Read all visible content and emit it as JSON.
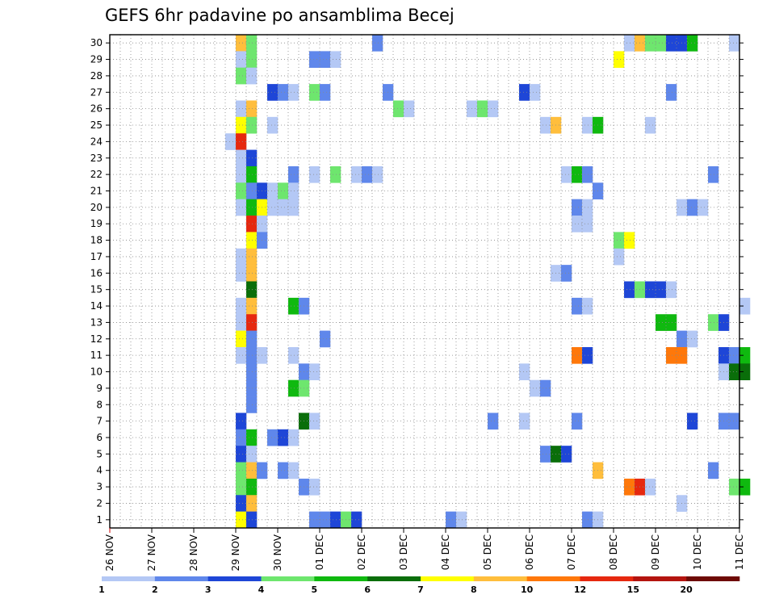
{
  "chart_data": {
    "type": "heatmap",
    "title": "GEFS 6hr padavine po ansamblima Becej",
    "y_categories": [
      "1",
      "2",
      "3",
      "4",
      "5",
      "6",
      "7",
      "8",
      "9",
      "10",
      "11",
      "12",
      "13",
      "14",
      "15",
      "16",
      "17",
      "18",
      "19",
      "20",
      "21",
      "22",
      "23",
      "24",
      "25",
      "26",
      "27",
      "28",
      "29",
      "30"
    ],
    "x_categories": [
      "26 NOV",
      "27 NOV",
      "28 NOV",
      "29 NOV",
      "30 NOV",
      "01 DEC",
      "02 DEC",
      "03 DEC",
      "04 DEC",
      "05 DEC",
      "06 DEC",
      "07 DEC",
      "08 DEC",
      "09 DEC",
      "10 DEC",
      "11 DEC"
    ],
    "x_steps_per_day": 4,
    "grid": true,
    "colorbar": {
      "position": "bottom",
      "colors": [
        "#b4c8f5",
        "#5f87eb",
        "#1e46d7",
        "#6ee66e",
        "#0fb90f",
        "#0a6e0a",
        "#ffff00",
        "#ffbe3c",
        "#ff780a",
        "#e6280f",
        "#b4140f",
        "#6e0a05"
      ],
      "labels": [
        "1",
        "2",
        "3",
        "4",
        "5",
        "6",
        "7",
        "8",
        "10",
        "12",
        "15",
        "20"
      ]
    },
    "cells": [
      {
        "member": 30,
        "step": 12,
        "v": 8
      },
      {
        "member": 30,
        "step": 13,
        "v": 4
      },
      {
        "member": 30,
        "step": 25,
        "v": 2
      },
      {
        "member": 30,
        "step": 49,
        "v": 1
      },
      {
        "member": 30,
        "step": 50,
        "v": 8
      },
      {
        "member": 30,
        "step": 51,
        "v": 4
      },
      {
        "member": 30,
        "step": 52,
        "v": 4
      },
      {
        "member": 30,
        "step": 53,
        "v": 3
      },
      {
        "member": 30,
        "step": 54,
        "v": 3
      },
      {
        "member": 30,
        "step": 55,
        "v": 5
      },
      {
        "member": 30,
        "step": 59,
        "v": 1
      },
      {
        "member": 29,
        "step": 12,
        "v": 1
      },
      {
        "member": 29,
        "step": 13,
        "v": 4
      },
      {
        "member": 29,
        "step": 19,
        "v": 2
      },
      {
        "member": 29,
        "step": 20,
        "v": 2
      },
      {
        "member": 29,
        "step": 21,
        "v": 1
      },
      {
        "member": 29,
        "step": 48,
        "v": 7
      },
      {
        "member": 28,
        "step": 12,
        "v": 4
      },
      {
        "member": 28,
        "step": 13,
        "v": 1
      },
      {
        "member": 27,
        "step": 15,
        "v": 3
      },
      {
        "member": 27,
        "step": 16,
        "v": 2
      },
      {
        "member": 27,
        "step": 17,
        "v": 1
      },
      {
        "member": 27,
        "step": 19,
        "v": 4
      },
      {
        "member": 27,
        "step": 20,
        "v": 2
      },
      {
        "member": 27,
        "step": 26,
        "v": 2
      },
      {
        "member": 27,
        "step": 39,
        "v": 3
      },
      {
        "member": 27,
        "step": 40,
        "v": 1
      },
      {
        "member": 27,
        "step": 53,
        "v": 2
      },
      {
        "member": 26,
        "step": 12,
        "v": 1
      },
      {
        "member": 26,
        "step": 13,
        "v": 8
      },
      {
        "member": 26,
        "step": 27,
        "v": 4
      },
      {
        "member": 26,
        "step": 28,
        "v": 1
      },
      {
        "member": 26,
        "step": 34,
        "v": 1
      },
      {
        "member": 26,
        "step": 35,
        "v": 4
      },
      {
        "member": 26,
        "step": 36,
        "v": 1
      },
      {
        "member": 25,
        "step": 12,
        "v": 7
      },
      {
        "member": 25,
        "step": 13,
        "v": 4
      },
      {
        "member": 25,
        "step": 15,
        "v": 1
      },
      {
        "member": 25,
        "step": 41,
        "v": 1
      },
      {
        "member": 25,
        "step": 42,
        "v": 8
      },
      {
        "member": 25,
        "step": 45,
        "v": 1
      },
      {
        "member": 25,
        "step": 46,
        "v": 5
      },
      {
        "member": 25,
        "step": 51,
        "v": 1
      },
      {
        "member": 24,
        "step": 11,
        "v": 1
      },
      {
        "member": 24,
        "step": 12,
        "v": 10
      },
      {
        "member": 23,
        "step": 12,
        "v": 1
      },
      {
        "member": 23,
        "step": 13,
        "v": 3
      },
      {
        "member": 22,
        "step": 12,
        "v": 1
      },
      {
        "member": 22,
        "step": 13,
        "v": 5
      },
      {
        "member": 22,
        "step": 17,
        "v": 2
      },
      {
        "member": 22,
        "step": 19,
        "v": 1
      },
      {
        "member": 22,
        "step": 21,
        "v": 4
      },
      {
        "member": 22,
        "step": 23,
        "v": 1
      },
      {
        "member": 22,
        "step": 24,
        "v": 2
      },
      {
        "member": 22,
        "step": 25,
        "v": 1
      },
      {
        "member": 22,
        "step": 43,
        "v": 1
      },
      {
        "member": 22,
        "step": 44,
        "v": 5
      },
      {
        "member": 22,
        "step": 45,
        "v": 2
      },
      {
        "member": 22,
        "step": 57,
        "v": 2
      },
      {
        "member": 21,
        "step": 12,
        "v": 4
      },
      {
        "member": 21,
        "step": 13,
        "v": 2
      },
      {
        "member": 21,
        "step": 14,
        "v": 3
      },
      {
        "member": 21,
        "step": 15,
        "v": 1
      },
      {
        "member": 21,
        "step": 16,
        "v": 4
      },
      {
        "member": 21,
        "step": 17,
        "v": 1
      },
      {
        "member": 21,
        "step": 46,
        "v": 2
      },
      {
        "member": 20,
        "step": 12,
        "v": 1
      },
      {
        "member": 20,
        "step": 13,
        "v": 5
      },
      {
        "member": 20,
        "step": 14,
        "v": 7
      },
      {
        "member": 20,
        "step": 15,
        "v": 1
      },
      {
        "member": 20,
        "step": 16,
        "v": 1
      },
      {
        "member": 20,
        "step": 17,
        "v": 1
      },
      {
        "member": 20,
        "step": 44,
        "v": 2
      },
      {
        "member": 20,
        "step": 45,
        "v": 1
      },
      {
        "member": 20,
        "step": 54,
        "v": 1
      },
      {
        "member": 20,
        "step": 55,
        "v": 2
      },
      {
        "member": 20,
        "step": 56,
        "v": 1
      },
      {
        "member": 19,
        "step": 13,
        "v": 10
      },
      {
        "member": 19,
        "step": 14,
        "v": 1
      },
      {
        "member": 19,
        "step": 44,
        "v": 1
      },
      {
        "member": 19,
        "step": 45,
        "v": 1
      },
      {
        "member": 18,
        "step": 13,
        "v": 7
      },
      {
        "member": 18,
        "step": 14,
        "v": 2
      },
      {
        "member": 18,
        "step": 48,
        "v": 4
      },
      {
        "member": 18,
        "step": 49,
        "v": 7
      },
      {
        "member": 17,
        "step": 12,
        "v": 1
      },
      {
        "member": 17,
        "step": 13,
        "v": 8
      },
      {
        "member": 17,
        "step": 48,
        "v": 1
      },
      {
        "member": 16,
        "step": 12,
        "v": 1
      },
      {
        "member": 16,
        "step": 13,
        "v": 8
      },
      {
        "member": 16,
        "step": 42,
        "v": 1
      },
      {
        "member": 16,
        "step": 43,
        "v": 2
      },
      {
        "member": 15,
        "step": 13,
        "v": 6
      },
      {
        "member": 15,
        "step": 49,
        "v": 3
      },
      {
        "member": 15,
        "step": 50,
        "v": 4
      },
      {
        "member": 15,
        "step": 51,
        "v": 3
      },
      {
        "member": 15,
        "step": 52,
        "v": 3
      },
      {
        "member": 15,
        "step": 53,
        "v": 1
      },
      {
        "member": 14,
        "step": 12,
        "v": 1
      },
      {
        "member": 14,
        "step": 13,
        "v": 8
      },
      {
        "member": 14,
        "step": 17,
        "v": 5
      },
      {
        "member": 14,
        "step": 18,
        "v": 2
      },
      {
        "member": 14,
        "step": 44,
        "v": 2
      },
      {
        "member": 14,
        "step": 45,
        "v": 1
      },
      {
        "member": 14,
        "step": 60,
        "v": 1
      },
      {
        "member": 13,
        "step": 12,
        "v": 1
      },
      {
        "member": 13,
        "step": 13,
        "v": 10
      },
      {
        "member": 13,
        "step": 52,
        "v": 5
      },
      {
        "member": 13,
        "step": 53,
        "v": 5
      },
      {
        "member": 13,
        "step": 57,
        "v": 4
      },
      {
        "member": 13,
        "step": 58,
        "v": 3
      },
      {
        "member": 12,
        "step": 12,
        "v": 7
      },
      {
        "member": 12,
        "step": 13,
        "v": 2
      },
      {
        "member": 12,
        "step": 20,
        "v": 2
      },
      {
        "member": 12,
        "step": 54,
        "v": 2
      },
      {
        "member": 12,
        "step": 55,
        "v": 1
      },
      {
        "member": 11,
        "step": 12,
        "v": 1
      },
      {
        "member": 11,
        "step": 13,
        "v": 2
      },
      {
        "member": 11,
        "step": 14,
        "v": 1
      },
      {
        "member": 11,
        "step": 17,
        "v": 1
      },
      {
        "member": 11,
        "step": 44,
        "v": 9
      },
      {
        "member": 11,
        "step": 45,
        "v": 3
      },
      {
        "member": 11,
        "step": 53,
        "v": 9
      },
      {
        "member": 11,
        "step": 54,
        "v": 9
      },
      {
        "member": 11,
        "step": 58,
        "v": 3
      },
      {
        "member": 11,
        "step": 59,
        "v": 2
      },
      {
        "member": 11,
        "step": 60,
        "v": 5
      },
      {
        "member": 10,
        "step": 13,
        "v": 2
      },
      {
        "member": 10,
        "step": 18,
        "v": 2
      },
      {
        "member": 10,
        "step": 19,
        "v": 1
      },
      {
        "member": 10,
        "step": 39,
        "v": 1
      },
      {
        "member": 10,
        "step": 58,
        "v": 1
      },
      {
        "member": 10,
        "step": 59,
        "v": 6
      },
      {
        "member": 10,
        "step": 60,
        "v": 6
      },
      {
        "member": 9,
        "step": 13,
        "v": 2
      },
      {
        "member": 9,
        "step": 17,
        "v": 5
      },
      {
        "member": 9,
        "step": 18,
        "v": 4
      },
      {
        "member": 9,
        "step": 40,
        "v": 1
      },
      {
        "member": 9,
        "step": 41,
        "v": 2
      },
      {
        "member": 8,
        "step": 13,
        "v": 2
      },
      {
        "member": 7,
        "step": 12,
        "v": 3
      },
      {
        "member": 7,
        "step": 18,
        "v": 6
      },
      {
        "member": 7,
        "step": 19,
        "v": 1
      },
      {
        "member": 7,
        "step": 36,
        "v": 2
      },
      {
        "member": 7,
        "step": 39,
        "v": 1
      },
      {
        "member": 7,
        "step": 44,
        "v": 2
      },
      {
        "member": 7,
        "step": 55,
        "v": 3
      },
      {
        "member": 7,
        "step": 58,
        "v": 2
      },
      {
        "member": 7,
        "step": 59,
        "v": 2
      },
      {
        "member": 6,
        "step": 12,
        "v": 2
      },
      {
        "member": 6,
        "step": 13,
        "v": 5
      },
      {
        "member": 6,
        "step": 15,
        "v": 2
      },
      {
        "member": 6,
        "step": 16,
        "v": 3
      },
      {
        "member": 6,
        "step": 17,
        "v": 1
      },
      {
        "member": 5,
        "step": 12,
        "v": 3
      },
      {
        "member": 5,
        "step": 13,
        "v": 1
      },
      {
        "member": 5,
        "step": 41,
        "v": 2
      },
      {
        "member": 5,
        "step": 42,
        "v": 6
      },
      {
        "member": 5,
        "step": 43,
        "v": 3
      },
      {
        "member": 4,
        "step": 12,
        "v": 4
      },
      {
        "member": 4,
        "step": 13,
        "v": 8
      },
      {
        "member": 4,
        "step": 14,
        "v": 2
      },
      {
        "member": 4,
        "step": 16,
        "v": 2
      },
      {
        "member": 4,
        "step": 17,
        "v": 1
      },
      {
        "member": 4,
        "step": 46,
        "v": 8
      },
      {
        "member": 4,
        "step": 57,
        "v": 2
      },
      {
        "member": 3,
        "step": 12,
        "v": 4
      },
      {
        "member": 3,
        "step": 13,
        "v": 5
      },
      {
        "member": 3,
        "step": 18,
        "v": 2
      },
      {
        "member": 3,
        "step": 19,
        "v": 1
      },
      {
        "member": 3,
        "step": 49,
        "v": 9
      },
      {
        "member": 3,
        "step": 50,
        "v": 10
      },
      {
        "member": 3,
        "step": 51,
        "v": 1
      },
      {
        "member": 3,
        "step": 59,
        "v": 4
      },
      {
        "member": 3,
        "step": 60,
        "v": 5
      },
      {
        "member": 2,
        "step": 12,
        "v": 3
      },
      {
        "member": 2,
        "step": 13,
        "v": 8
      },
      {
        "member": 2,
        "step": 54,
        "v": 1
      },
      {
        "member": 1,
        "step": 12,
        "v": 7
      },
      {
        "member": 1,
        "step": 13,
        "v": 3
      },
      {
        "member": 1,
        "step": 19,
        "v": 2
      },
      {
        "member": 1,
        "step": 20,
        "v": 2
      },
      {
        "member": 1,
        "step": 21,
        "v": 3
      },
      {
        "member": 1,
        "step": 22,
        "v": 4
      },
      {
        "member": 1,
        "step": 23,
        "v": 3
      },
      {
        "member": 1,
        "step": 32,
        "v": 2
      },
      {
        "member": 1,
        "step": 33,
        "v": 1
      },
      {
        "member": 1,
        "step": 45,
        "v": 2
      },
      {
        "member": 1,
        "step": 46,
        "v": 1
      }
    ]
  }
}
